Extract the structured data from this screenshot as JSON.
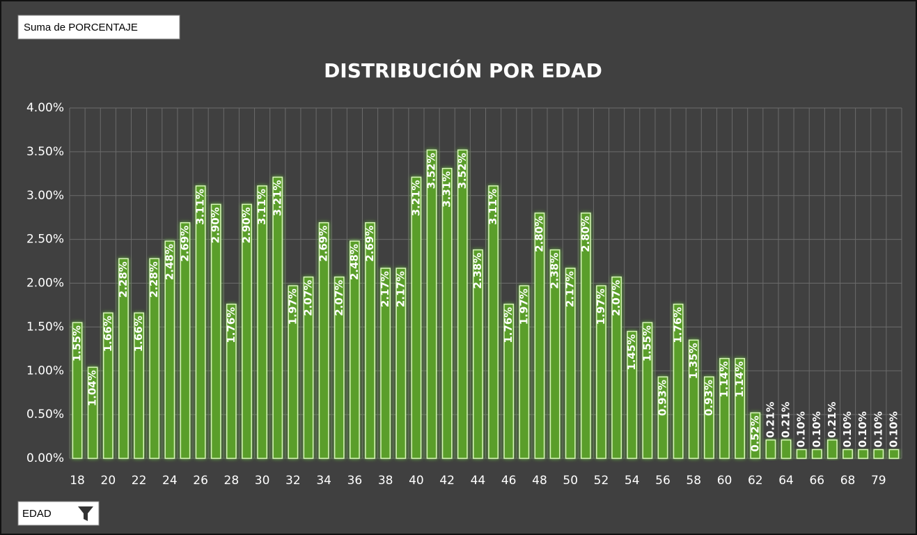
{
  "pivot": {
    "value_field": "Suma de PORCENTAJE",
    "axis_field": "EDAD"
  },
  "chart_data": {
    "type": "bar",
    "title": "DISTRIBUCIÓN POR EDAD",
    "categories": [
      "18",
      null,
      "20",
      null,
      "22",
      null,
      "24",
      null,
      "26",
      null,
      "28",
      null,
      "30",
      null,
      "32",
      null,
      "34",
      null,
      "36",
      null,
      "38",
      null,
      "40",
      null,
      "42",
      null,
      "44",
      null,
      "46",
      null,
      "48",
      null,
      "50",
      null,
      "52",
      null,
      "54",
      null,
      "56",
      null,
      "58",
      null,
      "60",
      null,
      "62",
      null,
      "64",
      null,
      "66",
      null,
      "68",
      null,
      "79",
      null
    ],
    "values": [
      1.55,
      1.04,
      1.66,
      2.28,
      1.66,
      2.28,
      2.48,
      2.69,
      3.11,
      2.9,
      1.76,
      2.9,
      3.11,
      3.21,
      1.97,
      2.07,
      2.69,
      2.07,
      2.48,
      2.69,
      2.17,
      2.17,
      3.21,
      3.52,
      3.31,
      3.52,
      2.38,
      3.11,
      1.76,
      1.97,
      2.8,
      2.38,
      2.17,
      2.8,
      1.97,
      2.07,
      1.45,
      1.55,
      0.93,
      1.76,
      1.35,
      0.93,
      1.14,
      1.14,
      0.52,
      0.21,
      0.21,
      0.1,
      0.1,
      0.21,
      0.1,
      0.1,
      0.1,
      0.1
    ],
    "value_labels": [
      "1.55%",
      "1.04%",
      "1.66%",
      "2.28%",
      "1.66%",
      "2.28%",
      "2.48%",
      "2.69%",
      "3.11%",
      "2.90%",
      "1.76%",
      "2.90%",
      "3.11%",
      "3.21%",
      "1.97%",
      "2.07%",
      "2.69%",
      "2.07%",
      "2.48%",
      "2.69%",
      "2.17%",
      "2.17%",
      "3.21%",
      "3.52%",
      "3.31%",
      "3.52%",
      "2.38%",
      "3.11%",
      "1.76%",
      "1.97%",
      "2.80%",
      "2.38%",
      "2.17%",
      "2.80%",
      "1.97%",
      "2.07%",
      "1.45%",
      "1.55%",
      "0.93%",
      "1.76%",
      "1.35%",
      "0.93%",
      "1.14%",
      "1.14%",
      "0.52%",
      "0.21%",
      "0.21%",
      "0.10%",
      "0.10%",
      "0.21%",
      "0.10%",
      "0.10%",
      "0.10%",
      "0.10%"
    ],
    "color": "#5a9e2a",
    "ylim": [
      0,
      4
    ],
    "yticks": [
      {
        "value": 0,
        "label": "0.00%"
      },
      {
        "value": 0.5,
        "label": "0.50%"
      },
      {
        "value": 1,
        "label": "1.00%"
      },
      {
        "value": 1.5,
        "label": "1.50%"
      },
      {
        "value": 2,
        "label": "2.00%"
      },
      {
        "value": 2.5,
        "label": "2.50%"
      },
      {
        "value": 3,
        "label": "3.00%"
      },
      {
        "value": 3.5,
        "label": "3.50%"
      },
      {
        "value": 4,
        "label": "4.00%"
      }
    ],
    "grid": true
  }
}
